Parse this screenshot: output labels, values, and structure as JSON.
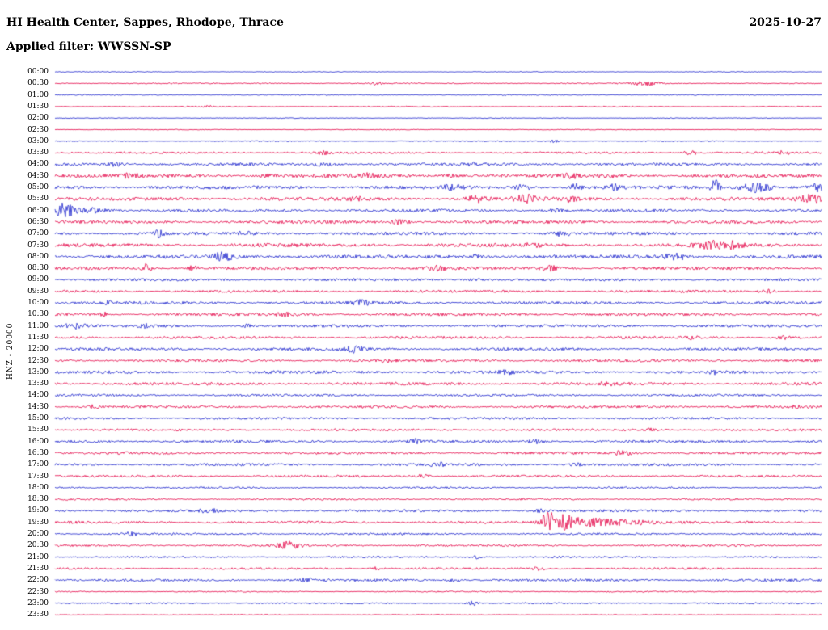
{
  "header": {
    "title": "HI Health Center, Sappes, Rhodope, Thrace",
    "date": "2025-10-27",
    "filter": "Applied filter: WWSSN-SP"
  },
  "side_label": "HNZ - 20000",
  "chart_data": {
    "type": "line",
    "subtype": "helicorder-seismogram",
    "title": "HI Health Center, Sappes, Rhodope, Thrace",
    "date": "2025-10-27",
    "applied_filter": "WWSSN-SP",
    "channel": "HNZ",
    "scale": "20000",
    "minutes_per_row": 30,
    "rows_count": 48,
    "legend_position": "none",
    "grid": false,
    "colors": {
      "blue": "#1a22cc",
      "red": "#e30045"
    },
    "rows": [
      {
        "time": "00:00",
        "color": "blue",
        "noise": 0.3,
        "events": []
      },
      {
        "time": "00:30",
        "color": "red",
        "noise": 0.45,
        "events": [
          {
            "x": 0.42,
            "amp": 2,
            "w": 5
          },
          {
            "x": 0.77,
            "amp": 2.5,
            "w": 12
          }
        ]
      },
      {
        "time": "01:00",
        "color": "blue",
        "noise": 0.4,
        "events": []
      },
      {
        "time": "01:30",
        "color": "red",
        "noise": 0.4,
        "events": [
          {
            "x": 0.2,
            "amp": 1.5,
            "w": 4
          }
        ]
      },
      {
        "time": "02:00",
        "color": "blue",
        "noise": 0.3,
        "events": []
      },
      {
        "time": "02:30",
        "color": "red",
        "noise": 0.3,
        "events": []
      },
      {
        "time": "03:00",
        "color": "blue",
        "noise": 0.4,
        "events": [
          {
            "x": 0.65,
            "amp": 2,
            "w": 5
          }
        ]
      },
      {
        "time": "03:30",
        "color": "red",
        "noise": 0.8,
        "events": [
          {
            "x": 0.35,
            "amp": 2,
            "w": 6
          },
          {
            "x": 0.83,
            "amp": 2.2,
            "w": 8
          },
          {
            "x": 0.95,
            "amp": 2,
            "w": 6
          }
        ]
      },
      {
        "time": "04:00",
        "color": "blue",
        "noise": 1.1,
        "events": [
          {
            "x": 0.08,
            "amp": 2,
            "w": 8
          },
          {
            "x": 0.35,
            "amp": 1.8,
            "w": 10
          },
          {
            "x": 0.55,
            "amp": 1.8,
            "w": 8
          }
        ]
      },
      {
        "time": "04:30",
        "color": "red",
        "noise": 1.4,
        "events": [
          {
            "x": 0.1,
            "amp": 2.2,
            "w": 8
          },
          {
            "x": 0.28,
            "amp": 2,
            "w": 6
          },
          {
            "x": 0.41,
            "amp": 2.2,
            "w": 8
          },
          {
            "x": 0.52,
            "amp": 2,
            "w": 6
          },
          {
            "x": 0.67,
            "amp": 2.6,
            "w": 8
          },
          {
            "x": 0.72,
            "amp": 2.2,
            "w": 6
          }
        ]
      },
      {
        "time": "05:00",
        "color": "blue",
        "noise": 1.4,
        "events": [
          {
            "x": 0.52,
            "amp": 2.5,
            "w": 8
          },
          {
            "x": 0.61,
            "amp": 3,
            "w": 6
          },
          {
            "x": 0.68,
            "amp": 5,
            "w": 4
          },
          {
            "x": 0.73,
            "amp": 3,
            "w": 6
          },
          {
            "x": 0.862,
            "amp": 13,
            "w": 3.5
          },
          {
            "x": 0.915,
            "amp": 6,
            "w": 14
          },
          {
            "x": 0.995,
            "amp": 4,
            "w": 6
          }
        ]
      },
      {
        "time": "05:30",
        "color": "red",
        "noise": 1.4,
        "events": [
          {
            "x": 0.39,
            "amp": 2.5,
            "w": 8
          },
          {
            "x": 0.55,
            "amp": 3.5,
            "w": 9
          },
          {
            "x": 0.615,
            "amp": 4.5,
            "w": 9
          },
          {
            "x": 0.67,
            "amp": 2.8,
            "w": 8
          },
          {
            "x": 0.985,
            "amp": 5,
            "w": 9
          }
        ]
      },
      {
        "time": "06:00",
        "color": "blue",
        "noise": 1.1,
        "events": [
          {
            "x": 0.012,
            "amp": 9,
            "w": 8
          },
          {
            "x": 0.05,
            "amp": 3,
            "w": 14
          },
          {
            "x": 0.65,
            "amp": 1.8,
            "w": 8
          }
        ]
      },
      {
        "time": "06:30",
        "color": "red",
        "noise": 1.2,
        "events": [
          {
            "x": 0.45,
            "amp": 2.5,
            "w": 9
          }
        ]
      },
      {
        "time": "07:00",
        "color": "blue",
        "noise": 1.2,
        "events": [
          {
            "x": 0.135,
            "amp": 4,
            "w": 4
          },
          {
            "x": 0.25,
            "amp": 2,
            "w": 8
          },
          {
            "x": 0.66,
            "amp": 2.2,
            "w": 8
          }
        ]
      },
      {
        "time": "07:30",
        "color": "red",
        "noise": 1.4,
        "events": [
          {
            "x": 0.625,
            "amp": 2.2,
            "w": 6
          },
          {
            "x": 0.855,
            "amp": 4.5,
            "w": 12
          },
          {
            "x": 0.885,
            "amp": 3.5,
            "w": 8
          }
        ]
      },
      {
        "time": "08:00",
        "color": "blue",
        "noise": 1.4,
        "events": [
          {
            "x": 0.22,
            "amp": 4.5,
            "w": 9
          },
          {
            "x": 0.55,
            "amp": 2,
            "w": 8
          },
          {
            "x": 0.81,
            "amp": 3.5,
            "w": 11
          }
        ]
      },
      {
        "time": "08:30",
        "color": "red",
        "noise": 1.2,
        "events": [
          {
            "x": 0.12,
            "amp": 5.5,
            "w": 4
          },
          {
            "x": 0.18,
            "amp": 2.5,
            "w": 5
          },
          {
            "x": 0.5,
            "amp": 2.8,
            "w": 9
          },
          {
            "x": 0.645,
            "amp": 2.8,
            "w": 8
          }
        ]
      },
      {
        "time": "09:00",
        "color": "blue",
        "noise": 1.0,
        "events": [
          {
            "x": 0.55,
            "amp": 1.5,
            "w": 8
          }
        ]
      },
      {
        "time": "09:30",
        "color": "red",
        "noise": 1.0,
        "events": [
          {
            "x": 0.93,
            "amp": 2,
            "w": 6
          }
        ]
      },
      {
        "time": "10:00",
        "color": "blue",
        "noise": 1.1,
        "events": [
          {
            "x": 0.07,
            "amp": 2,
            "w": 6
          },
          {
            "x": 0.4,
            "amp": 3.2,
            "w": 7
          }
        ]
      },
      {
        "time": "10:30",
        "color": "red",
        "noise": 1.1,
        "events": [
          {
            "x": 0.065,
            "amp": 2.8,
            "w": 4
          },
          {
            "x": 0.3,
            "amp": 2,
            "w": 8
          }
        ]
      },
      {
        "time": "11:00",
        "color": "blue",
        "noise": 1.1,
        "events": [
          {
            "x": 0.025,
            "amp": 2.8,
            "w": 9
          },
          {
            "x": 0.115,
            "amp": 2.2,
            "w": 6
          },
          {
            "x": 0.25,
            "amp": 1.8,
            "w": 6
          }
        ]
      },
      {
        "time": "11:30",
        "color": "red",
        "noise": 1.0,
        "events": [
          {
            "x": 0.83,
            "amp": 2,
            "w": 6
          },
          {
            "x": 0.95,
            "amp": 2.2,
            "w": 5
          }
        ]
      },
      {
        "time": "12:00",
        "color": "blue",
        "noise": 1.1,
        "events": [
          {
            "x": 0.39,
            "amp": 3.8,
            "w": 9
          }
        ]
      },
      {
        "time": "12:30",
        "color": "red",
        "noise": 1.0,
        "events": [
          {
            "x": 0.43,
            "amp": 2,
            "w": 6
          }
        ]
      },
      {
        "time": "13:00",
        "color": "blue",
        "noise": 1.2,
        "events": [
          {
            "x": 0.59,
            "amp": 2,
            "w": 6
          },
          {
            "x": 0.86,
            "amp": 2,
            "w": 6
          }
        ]
      },
      {
        "time": "13:30",
        "color": "red",
        "noise": 1.2,
        "events": [
          {
            "x": 0.72,
            "amp": 2,
            "w": 6
          }
        ]
      },
      {
        "time": "14:00",
        "color": "blue",
        "noise": 0.9,
        "events": []
      },
      {
        "time": "14:30",
        "color": "red",
        "noise": 1.0,
        "events": [
          {
            "x": 0.05,
            "amp": 2,
            "w": 6
          },
          {
            "x": 0.97,
            "amp": 2,
            "w": 5
          }
        ]
      },
      {
        "time": "15:00",
        "color": "blue",
        "noise": 0.9,
        "events": []
      },
      {
        "time": "15:30",
        "color": "red",
        "noise": 0.9,
        "events": [
          {
            "x": 0.78,
            "amp": 2,
            "w": 6
          }
        ]
      },
      {
        "time": "16:00",
        "color": "blue",
        "noise": 1.0,
        "events": [
          {
            "x": 0.47,
            "amp": 2.8,
            "w": 5
          },
          {
            "x": 0.63,
            "amp": 2.2,
            "w": 8
          }
        ]
      },
      {
        "time": "16:30",
        "color": "red",
        "noise": 1.0,
        "events": [
          {
            "x": 0.74,
            "amp": 2.4,
            "w": 8
          }
        ]
      },
      {
        "time": "17:00",
        "color": "blue",
        "noise": 1.0,
        "events": [
          {
            "x": 0.5,
            "amp": 2.4,
            "w": 6
          },
          {
            "x": 0.68,
            "amp": 2,
            "w": 6
          }
        ]
      },
      {
        "time": "17:30",
        "color": "red",
        "noise": 0.9,
        "events": [
          {
            "x": 0.48,
            "amp": 2,
            "w": 6
          }
        ]
      },
      {
        "time": "18:00",
        "color": "blue",
        "noise": 0.7,
        "events": []
      },
      {
        "time": "18:30",
        "color": "red",
        "noise": 0.7,
        "events": []
      },
      {
        "time": "19:00",
        "color": "blue",
        "noise": 1.0,
        "events": [
          {
            "x": 0.2,
            "amp": 2.2,
            "w": 8
          },
          {
            "x": 0.63,
            "amp": 2,
            "w": 6
          }
        ]
      },
      {
        "time": "19:30",
        "color": "red",
        "noise": 1.0,
        "events": [
          {
            "x": 0.642,
            "amp": 10,
            "w": 5
          },
          {
            "x": 0.66,
            "amp": 8,
            "w": 12
          },
          {
            "x": 0.7,
            "amp": 4.5,
            "w": 22
          },
          {
            "x": 0.75,
            "amp": 2.2,
            "w": 28
          }
        ]
      },
      {
        "time": "20:00",
        "color": "blue",
        "noise": 0.8,
        "events": [
          {
            "x": 0.1,
            "amp": 2,
            "w": 6
          }
        ]
      },
      {
        "time": "20:30",
        "color": "red",
        "noise": 0.8,
        "events": [
          {
            "x": 0.305,
            "amp": 4.5,
            "w": 10
          }
        ]
      },
      {
        "time": "21:00",
        "color": "blue",
        "noise": 0.7,
        "events": [
          {
            "x": 0.55,
            "amp": 1.8,
            "w": 6
          }
        ]
      },
      {
        "time": "21:30",
        "color": "red",
        "noise": 0.8,
        "events": [
          {
            "x": 0.42,
            "amp": 2.2,
            "w": 6
          },
          {
            "x": 0.63,
            "amp": 2,
            "w": 6
          }
        ]
      },
      {
        "time": "22:00",
        "color": "blue",
        "noise": 1.0,
        "events": [
          {
            "x": 0.33,
            "amp": 2,
            "w": 8
          },
          {
            "x": 0.52,
            "amp": 2,
            "w": 6
          }
        ]
      },
      {
        "time": "22:30",
        "color": "red",
        "noise": 0.5,
        "events": []
      },
      {
        "time": "23:00",
        "color": "blue",
        "noise": 0.6,
        "events": [
          {
            "x": 0.545,
            "amp": 2.8,
            "w": 5
          }
        ]
      },
      {
        "time": "23:30",
        "color": "red",
        "noise": 0.35,
        "events": []
      }
    ]
  }
}
